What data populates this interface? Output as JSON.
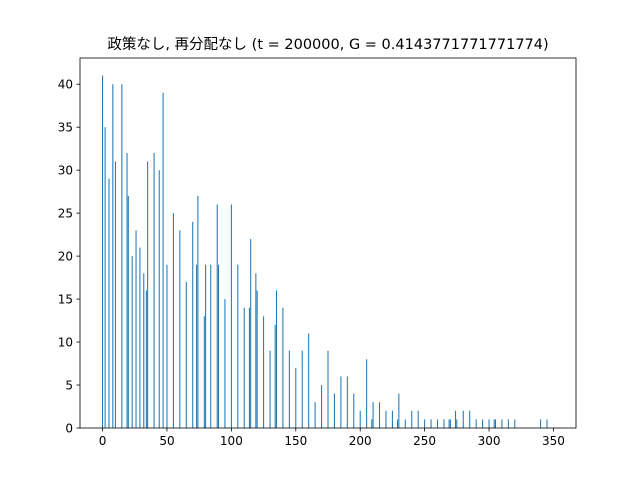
{
  "chart_data": {
    "type": "bar",
    "title": "政策なし, 再分配なし (t = 200000, G = 0.4143771771771774)",
    "xlabel": "",
    "ylabel": "",
    "xlim": [
      -17.5,
      367.5
    ],
    "ylim": [
      0,
      43.05
    ],
    "xticks": [
      0,
      50,
      100,
      150,
      200,
      250,
      300,
      350
    ],
    "yticks": [
      0,
      5,
      10,
      15,
      20,
      25,
      30,
      35,
      40
    ],
    "bar_color": "#1f77b4",
    "grid": false,
    "legend": "none",
    "x": [
      0,
      2,
      5,
      8,
      10,
      15,
      19,
      20,
      23,
      26,
      29,
      32,
      34,
      35,
      40,
      44,
      47,
      50,
      55,
      60,
      65,
      70,
      73,
      74,
      79,
      80,
      84,
      89,
      90,
      95,
      100,
      105,
      110,
      114,
      115,
      119,
      120,
      125,
      130,
      134,
      135,
      140,
      145,
      150,
      155,
      160,
      165,
      170,
      175,
      180,
      185,
      190,
      195,
      200,
      205,
      209,
      210,
      215,
      220,
      225,
      229,
      230,
      235,
      240,
      245,
      250,
      255,
      260,
      265,
      269,
      270,
      274,
      275,
      280,
      285,
      290,
      295,
      300,
      304,
      305,
      310,
      315,
      320,
      340,
      345
    ],
    "values": [
      41,
      35,
      29,
      40,
      31,
      40,
      32,
      27,
      20,
      23,
      21,
      18,
      16,
      31,
      32,
      30,
      39,
      19,
      25,
      23,
      17,
      24,
      19,
      27,
      13,
      19,
      19,
      26,
      19,
      15,
      26,
      19,
      14,
      14,
      22,
      18,
      16,
      13,
      9,
      12,
      16,
      14,
      9,
      7,
      9,
      11,
      3,
      5,
      9,
      4,
      6,
      6,
      4,
      2,
      8,
      1,
      3,
      3,
      2,
      2,
      1,
      4,
      1,
      2,
      2,
      1,
      1,
      1,
      1,
      1,
      1,
      2,
      1,
      2,
      2,
      1,
      1,
      1,
      1,
      1,
      1,
      1,
      1,
      1,
      1
    ]
  }
}
